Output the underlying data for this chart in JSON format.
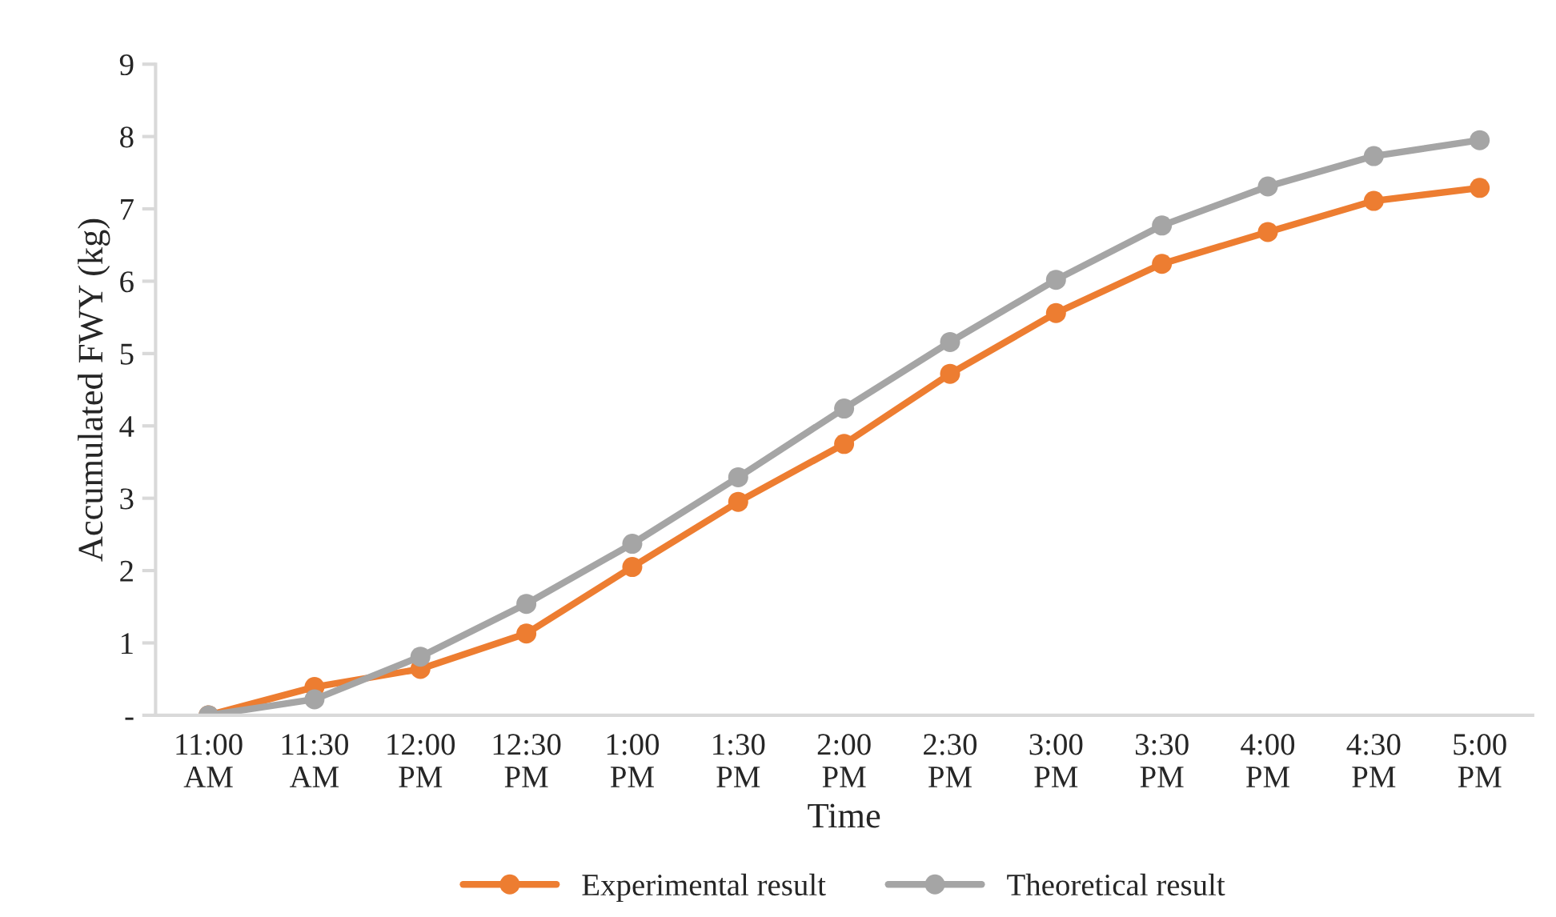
{
  "chart_data": {
    "type": "line",
    "xlabel": "Time",
    "ylabel": "Accumulated FWY (kg)",
    "categories": [
      "11:00\nAM",
      "11:30\nAM",
      "12:00\nPM",
      "12:30\nPM",
      "1:00\nPM",
      "1:30\nPM",
      "2:00\nPM",
      "2:30\nPM",
      "3:00\nPM",
      "3:30\nPM",
      "4:00\nPM",
      "4:30\nPM",
      "5:00\nPM"
    ],
    "series": [
      {
        "name": "Experimental result",
        "color": "#ed7d31",
        "values": [
          0,
          0.39,
          0.64,
          1.13,
          2.05,
          2.95,
          3.75,
          4.72,
          5.56,
          6.24,
          6.68,
          7.11,
          7.29
        ]
      },
      {
        "name": "Theoretical result",
        "color": "#a5a5a5",
        "values": [
          0,
          0.22,
          0.81,
          1.54,
          2.37,
          3.29,
          4.24,
          5.16,
          6.02,
          6.77,
          7.31,
          7.73,
          7.95
        ]
      }
    ],
    "ylim": [
      0,
      9
    ],
    "yticks": [
      {
        "value": 0,
        "label": "-"
      },
      1,
      2,
      3,
      4,
      5,
      6,
      7,
      8,
      9
    ],
    "grid": false,
    "legend": "bottom",
    "marker": "circle",
    "line_style": "solid"
  }
}
